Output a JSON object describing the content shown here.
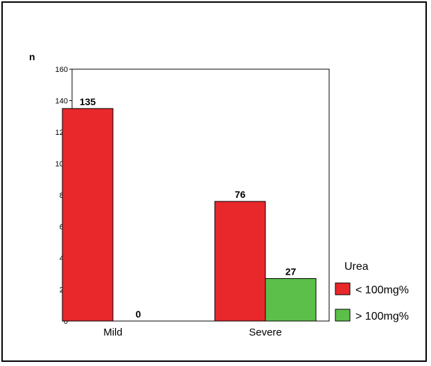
{
  "chart_data": {
    "type": "bar",
    "ylabel": "n",
    "xlabel": "",
    "categories": [
      "Mild",
      "Severe"
    ],
    "ylim": [
      0,
      160
    ],
    "yticks": [
      0,
      20,
      40,
      60,
      80,
      100,
      120,
      140,
      160
    ],
    "grid": false,
    "legend": {
      "title": "Urea",
      "placement": "right"
    },
    "series": [
      {
        "name": "< 100mg%",
        "color": "#e8282b",
        "values": [
          135,
          76
        ]
      },
      {
        "name": "> 100mg%",
        "color": "#5cbf4a",
        "values": [
          0,
          27
        ]
      }
    ]
  }
}
